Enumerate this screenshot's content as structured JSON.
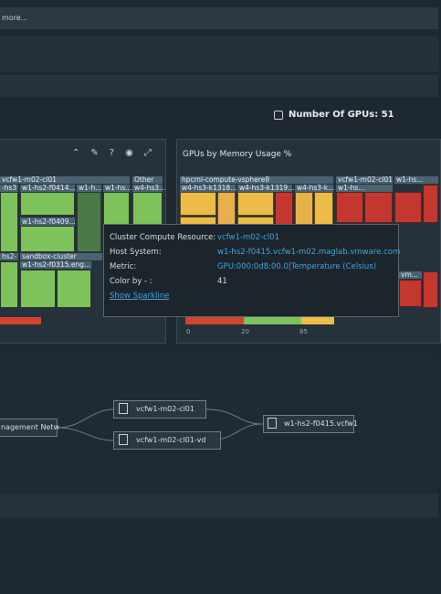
{
  "header": {
    "more_link": "more...",
    "gpu_count": "Number Of GPUs: 51"
  },
  "left_panel": {
    "groups": [
      "vcfw1-m02-cl01",
      "Other",
      "sandbox-cluster"
    ],
    "hosts": [
      "-hs3",
      "w1-hs2-f0414...",
      "w1-h...",
      "w1-hs...",
      "w4-hs3...",
      "w1-hs2-f0409...",
      "hs2-",
      "w1-hs2-f0315.eng..."
    ]
  },
  "right_panel": {
    "title": "GPUs by Memory Usage %",
    "groups": [
      "hpcml-compute-vsphere8",
      "vcfw1-m02-cl01",
      "w1-hs..."
    ],
    "hosts": [
      "w4-hs3-k1318....",
      "w4-hs3-k1319....",
      "w4-hs3-k...",
      "w1-hs...",
      "vm..."
    ],
    "legend": [
      "0",
      "20",
      "85"
    ]
  },
  "tooltip": {
    "rows": [
      [
        "Cluster Compute Resource:",
        "vcfw1-m02-cl01"
      ],
      [
        "Host System:",
        "w1-hs2-f0415.vcfw1-m02.maglab.vmware.com"
      ],
      [
        "Metric:",
        "GPU:000:0d8:00.0|Temperature (Celsius)"
      ],
      [
        "Color by - :",
        "41"
      ]
    ],
    "link": "Show Sparkline"
  },
  "topology": {
    "nodes": [
      "nagement Netw",
      "vcfw1-m02-cl01",
      "vcfw1-m02-cl01-vd",
      "w1-hs2-f0415.vcfw1"
    ]
  }
}
